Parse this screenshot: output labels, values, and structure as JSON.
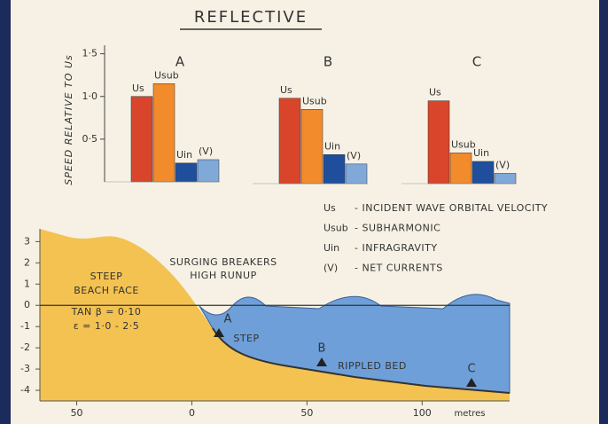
{
  "title": "REFLECTIVE",
  "chart_data": [
    {
      "type": "bar",
      "title": "A",
      "ylabel": "SPEED RELATIVE TO Us",
      "categories": [
        "Us",
        "Usub",
        "Uin",
        "(V)"
      ],
      "values": [
        1.0,
        1.15,
        0.22,
        0.26
      ],
      "colors": [
        "#d9452b",
        "#f28b2c",
        "#1f4f9c",
        "#80a9da"
      ],
      "ylim": [
        0,
        1.6
      ],
      "yticks": [
        {
          "value": 0.5,
          "label": "0·5"
        },
        {
          "value": 1.0,
          "label": "1·0"
        },
        {
          "value": 1.5,
          "label": "1·5"
        }
      ]
    },
    {
      "type": "bar",
      "title": "B",
      "categories": [
        "Us",
        "Usub",
        "Uin",
        "(V)"
      ],
      "values": [
        1.0,
        0.87,
        0.34,
        0.23
      ],
      "colors": [
        "#d9452b",
        "#f28b2c",
        "#1f4f9c",
        "#80a9da"
      ],
      "ylim": [
        0,
        1.6
      ]
    },
    {
      "type": "bar",
      "title": "C",
      "categories": [
        "Us",
        "Usub",
        "Uin",
        "(V)"
      ],
      "values": [
        0.97,
        0.36,
        0.26,
        0.12
      ],
      "colors": [
        "#d9452b",
        "#f28b2c",
        "#1f4f9c",
        "#80a9da"
      ],
      "ylim": [
        0,
        1.6
      ]
    }
  ],
  "legend": [
    {
      "symbol": "Us",
      "text": "- INCIDENT WAVE ORBITAL VELOCITY"
    },
    {
      "symbol": "Usub",
      "text": "- SUBHARMONIC"
    },
    {
      "symbol": "Uin",
      "text": "- INFRAGRAVITY"
    },
    {
      "symbol": "(V)",
      "text": "- NET CURRENTS"
    }
  ],
  "profile": {
    "xlim": [
      -66,
      138
    ],
    "ylim": [
      -4.5,
      3.6
    ],
    "xticks": [
      {
        "value": -50,
        "label": "50"
      },
      0,
      50,
      100
    ],
    "xunit": "metres",
    "yticks": [
      3,
      2,
      1,
      0,
      -1,
      -2,
      -3,
      -4
    ],
    "labels": [
      "STEEP",
      "BEACH FACE",
      "TAN β = 0·10",
      "ε = 1·0 - 2·5",
      "SURGING BREAKERS",
      "HIGH RUNUP",
      "STEP",
      "RIPPLED BED"
    ],
    "stations": [
      "A",
      "B",
      "C"
    ]
  }
}
